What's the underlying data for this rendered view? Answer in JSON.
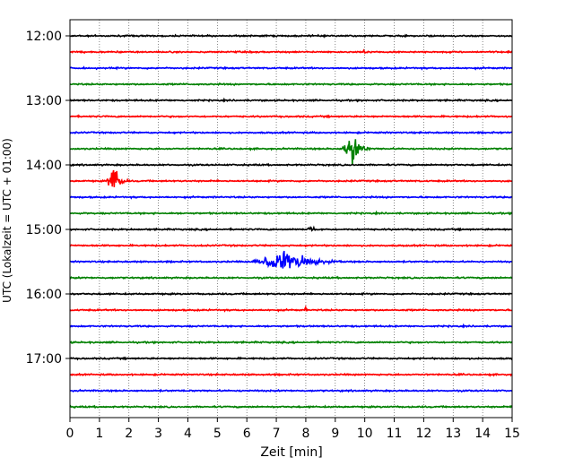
{
  "chart_data": {
    "type": "line",
    "title": "",
    "xlabel": "Zeit  [min]",
    "ylabel": "UTC (Lokalzeit = UTC + 01:00)",
    "xlim": [
      0,
      15
    ],
    "x_ticks": [
      "0",
      "1",
      "2",
      "3",
      "4",
      "5",
      "6",
      "7",
      "8",
      "9",
      "10",
      "11",
      "12",
      "13",
      "14",
      "15"
    ],
    "y_tick_labels": [
      "12:00",
      "13:00",
      "14:00",
      "15:00",
      "16:00",
      "17:00"
    ],
    "grid": "vertical dotted",
    "trace_interval_minutes": 15,
    "first_trace_time": "12:00",
    "trace_count": 24,
    "trace_colors": [
      "#000000",
      "#ff0000",
      "#0000ff",
      "#008000"
    ],
    "events": [
      {
        "trace_time": "13:45",
        "start_min": 9.2,
        "end_min": 10.2,
        "peak_min": 9.6,
        "amplitude": 1.3
      },
      {
        "trace_time": "14:15",
        "start_min": 1.2,
        "end_min": 2.0,
        "peak_min": 1.5,
        "amplitude": 1.2
      },
      {
        "trace_time": "15:00",
        "start_min": 7.9,
        "end_min": 8.6,
        "peak_min": 8.2,
        "amplitude": 0.25
      },
      {
        "trace_time": "15:30",
        "start_min": 6.1,
        "end_min": 9.2,
        "peak_min": 7.3,
        "amplitude": 0.95
      },
      {
        "trace_time": "12:15",
        "start_min": 9.9,
        "end_min": 10.2,
        "peak_min": 10.0,
        "amplitude": 0.25
      },
      {
        "trace_time": "16:15",
        "start_min": 7.9,
        "end_min": 8.1,
        "peak_min": 8.0,
        "amplitude": 0.25
      }
    ]
  }
}
